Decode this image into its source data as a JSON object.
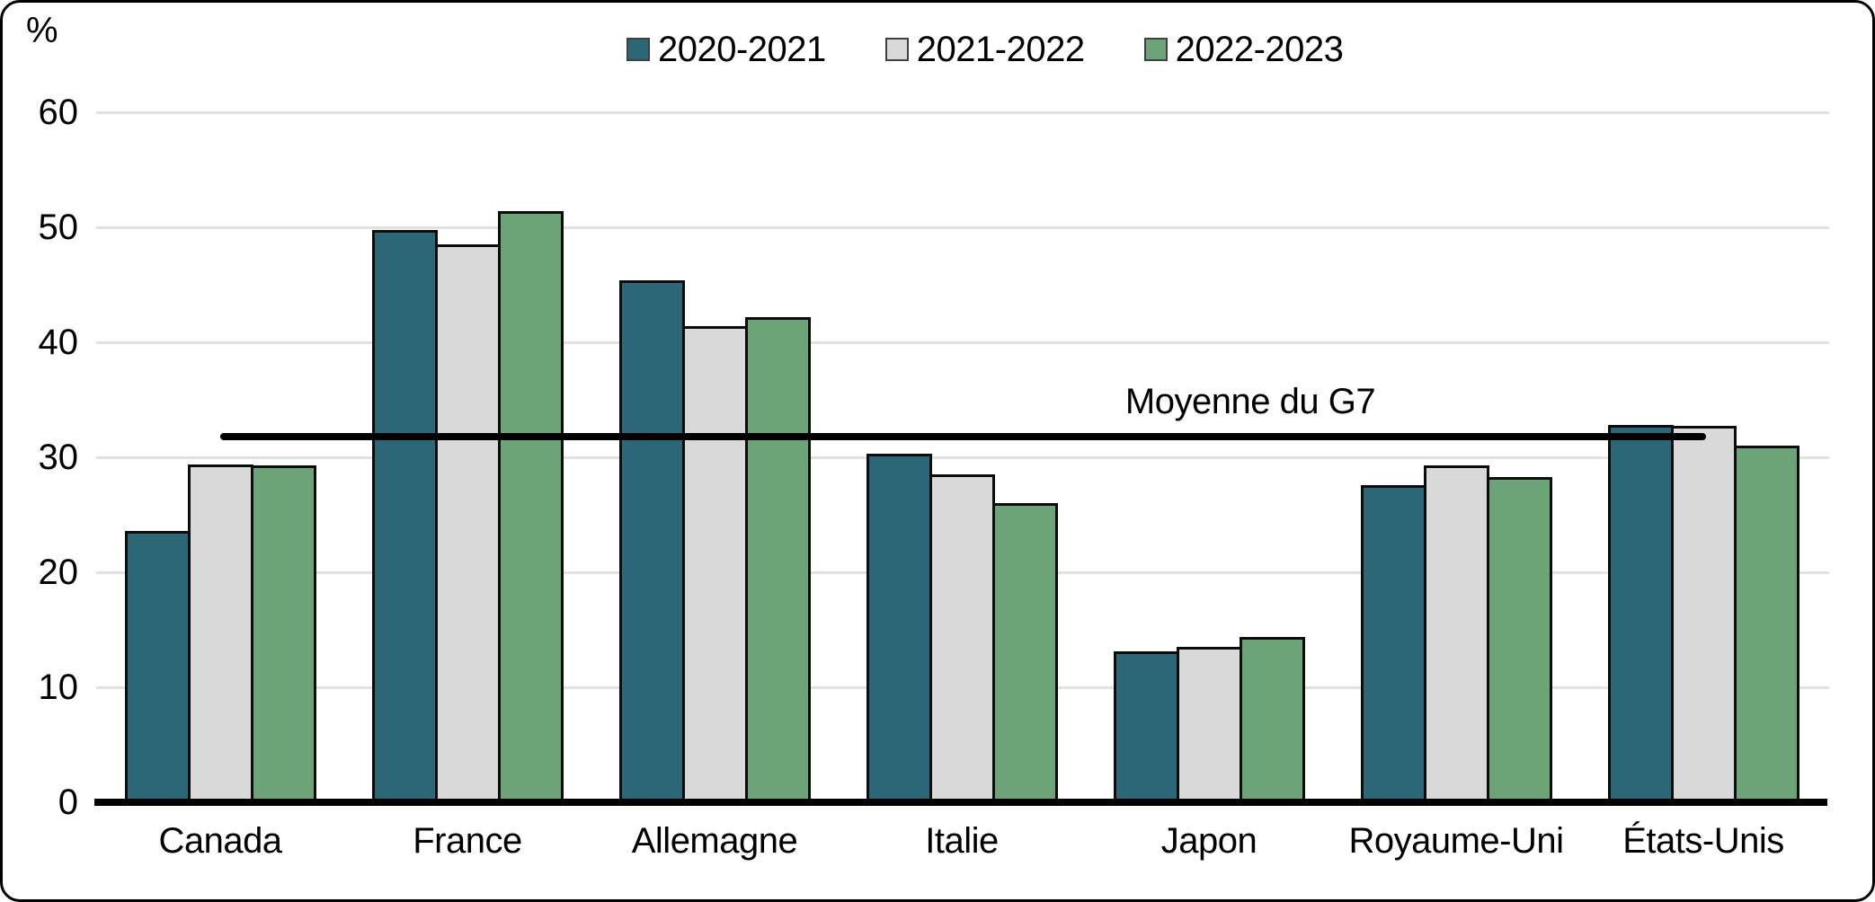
{
  "figure": {
    "background": "#ffffff",
    "border_color": "#000000"
  },
  "chart_data": {
    "type": "bar",
    "title": "",
    "categories": [
      "Canada",
      "France",
      "Allemagne",
      "Italie",
      "Japon",
      "Royaume-Uni",
      "États-Unis"
    ],
    "series": [
      {
        "name": "2020-2021",
        "color": "#2b6777",
        "values": [
          23.6,
          49.8,
          45.4,
          30.3,
          13.1,
          27.6,
          32.8
        ]
      },
      {
        "name": "2021-2022",
        "color": "#d9d9d9",
        "values": [
          29.4,
          48.5,
          41.4,
          28.5,
          13.5,
          29.3,
          32.7
        ]
      },
      {
        "name": "2022-2023",
        "color": "#6ca478",
        "values": [
          29.3,
          51.4,
          42.2,
          26.0,
          14.4,
          28.3,
          31.0
        ]
      }
    ],
    "reference_line": {
      "label": "Moyenne du G7",
      "value": 31.8,
      "color": "#000000"
    },
    "y_axis": {
      "label": "%",
      "min": 0,
      "max": 60,
      "ticks": [
        0,
        10,
        20,
        30,
        40,
        50,
        60
      ]
    },
    "x_axis": {
      "label": ""
    },
    "grid": true,
    "legend_position": "top",
    "gridline_color": "#e2e2e2",
    "axis_color": "#000000"
  }
}
